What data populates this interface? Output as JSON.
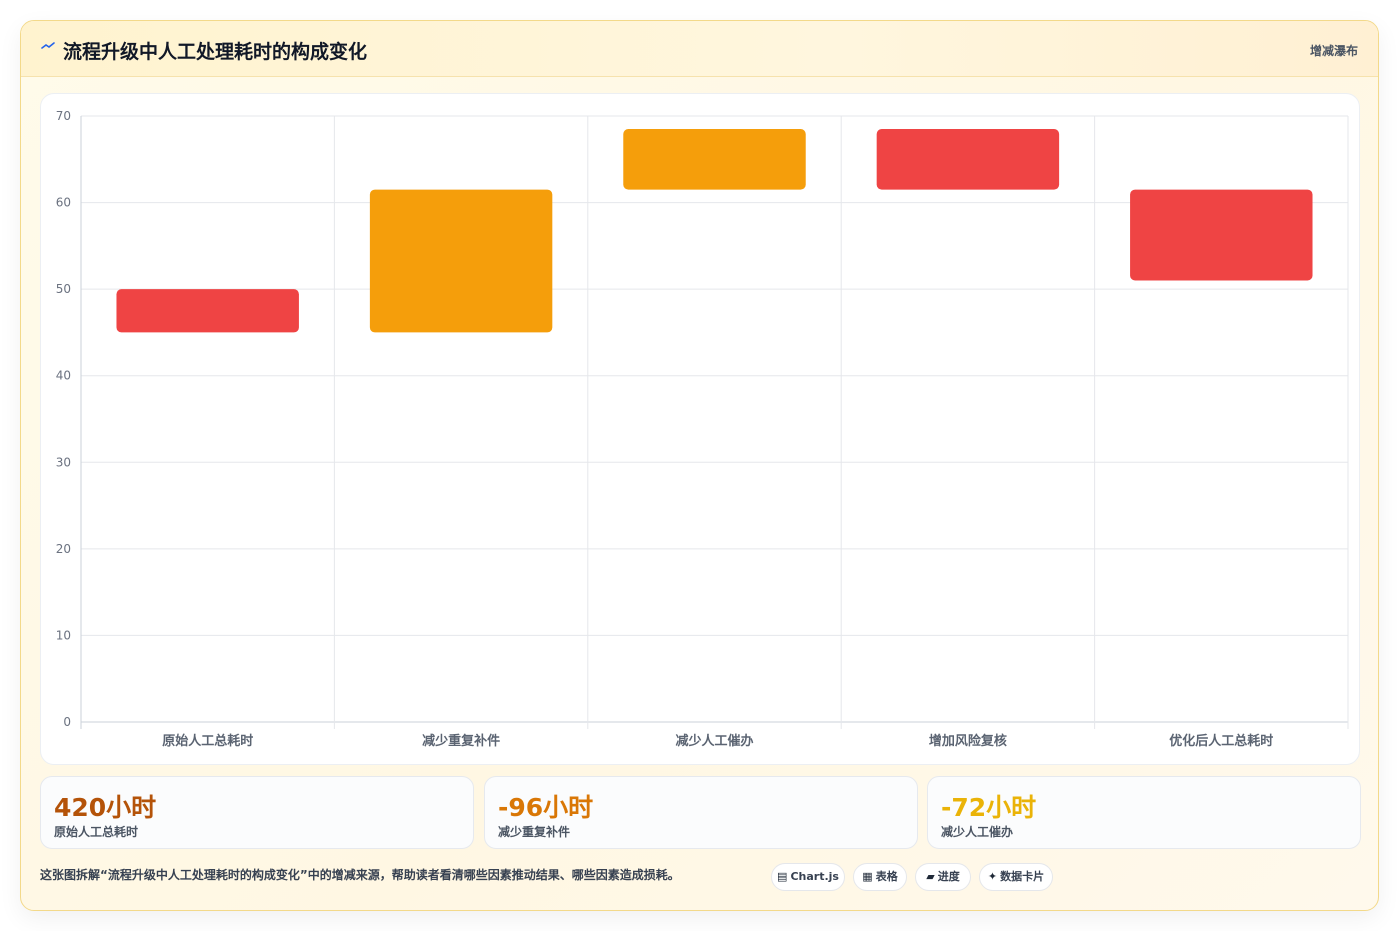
{
  "header": {
    "title": "流程升级中人工处理耗时的构成变化",
    "tag": "增减瀑布",
    "icon": "waterfall-icon"
  },
  "chart_data": {
    "type": "bar",
    "subtype": "waterfall",
    "categories": [
      "原始人工总耗时",
      "减少重复补件",
      "减少人工催办",
      "增加风险复核",
      "优化后人工总耗时"
    ],
    "bars": [
      {
        "start": 45,
        "end": 50,
        "color": "#ef4444"
      },
      {
        "start": 45,
        "end": 61.5,
        "color": "#f59e0b"
      },
      {
        "start": 61.5,
        "end": 68.5,
        "color": "#f59e0b"
      },
      {
        "start": 61.5,
        "end": 68.5,
        "color": "#ef4444"
      },
      {
        "start": 51,
        "end": 61.5,
        "color": "#ef4444"
      }
    ],
    "yticks": [
      "0",
      "10",
      "20",
      "30",
      "40",
      "50",
      "60",
      "70"
    ],
    "ylim": [
      0,
      70
    ],
    "grid": true,
    "legend": "none"
  },
  "stats": [
    {
      "value": "420小时",
      "label": "原始人工总耗时",
      "color": "#b45309"
    },
    {
      "value": "-96小时",
      "label": "减少重复补件",
      "color": "#d97706"
    },
    {
      "value": "-72小时",
      "label": "减少人工催办",
      "color": "#eab308"
    }
  ],
  "footer": {
    "description": "这张图拆解“流程升级中人工处理耗时的构成变化”中的增减来源，帮助读者看清哪些因素推动结果、哪些因素造成损耗。",
    "pills": [
      {
        "icon": "▤",
        "label": "Chart.js",
        "icon_name": "chart-icon"
      },
      {
        "icon": "▦",
        "label": "表格",
        "icon_name": "table-icon"
      },
      {
        "icon": "▰",
        "label": "进度",
        "icon_name": "progress-icon"
      },
      {
        "icon": "✦",
        "label": "数据卡片",
        "icon_name": "sparkle-icon"
      }
    ]
  }
}
